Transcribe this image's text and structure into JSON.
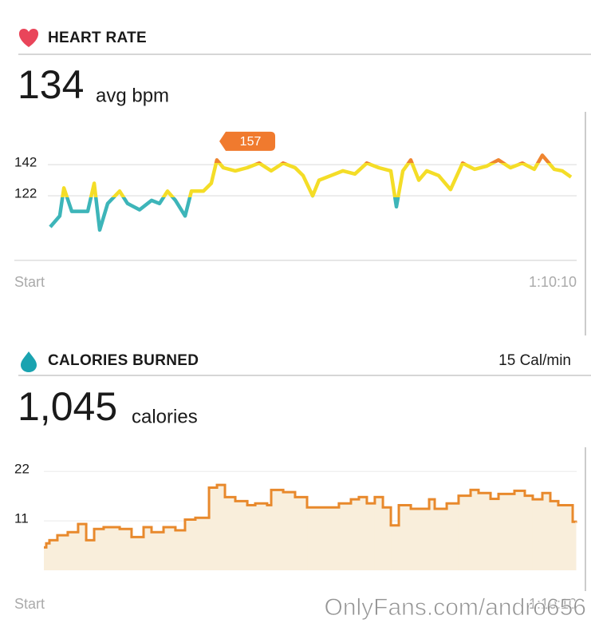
{
  "chart_data": [
    {
      "type": "line",
      "title": "HEART RATE",
      "summary": 134,
      "summary_unit": "avg bpm",
      "x": [
        0,
        77,
        110,
        174,
        303,
        355,
        400,
        464,
        561,
        625,
        722,
        819,
        883,
        948,
        1012,
        1090,
        1141,
        1238,
        1302,
        1347,
        1399,
        1496,
        1592,
        1689,
        1786,
        1882,
        1979,
        2044,
        2121,
        2173,
        2269,
        2366,
        2463,
        2559,
        2656,
        2753,
        2798,
        2850,
        2914,
        2979,
        3043,
        3140,
        3236,
        3333,
        3430,
        3526,
        3623,
        3720,
        3817,
        3913,
        3978,
        4074,
        4139,
        4210
      ],
      "values": [
        102,
        109,
        127,
        112,
        112,
        130,
        100,
        117,
        125,
        117,
        113,
        119,
        117,
        125,
        119,
        109,
        125,
        125,
        130,
        145,
        140,
        138,
        140,
        143,
        138,
        143,
        140,
        135,
        122,
        132,
        135,
        138,
        136,
        143,
        140,
        138,
        115,
        138,
        145,
        132,
        138,
        135,
        126,
        143,
        139,
        141,
        145,
        140,
        143,
        139,
        148,
        139,
        138,
        134
      ],
      "zones": [
        {
          "max": 121,
          "color": "#3db5b9"
        },
        {
          "max": 143,
          "color": "#f4dd27"
        },
        {
          "max": 160,
          "color": "#ef8530"
        }
      ],
      "annotation": {
        "x": 1367,
        "value": 157,
        "color": "#f07a2e"
      },
      "xlim": [
        0,
        4210
      ],
      "xticks": [
        {
          "value": 0,
          "label": "Start"
        },
        {
          "value": 4210,
          "label": "1:10:10"
        }
      ],
      "ylim": [
        80,
        160
      ],
      "yticks": [
        122,
        142
      ],
      "grid": true
    },
    {
      "type": "step",
      "title": "CALORIES BURNED",
      "rate": "15 Cal/min",
      "summary": {
        "value": 1045,
        "label": "1,045"
      },
      "summary_unit": "calories",
      "x": [
        0,
        19,
        44,
        107,
        189,
        271,
        335,
        398,
        473,
        600,
        694,
        789,
        852,
        947,
        1041,
        1117,
        1199,
        1307,
        1370,
        1433,
        1515,
        1610,
        1673,
        1767,
        1799,
        1894,
        1988,
        2083,
        2335,
        2430,
        2493,
        2556,
        2619,
        2683,
        2746,
        2809,
        2904,
        3049,
        3093,
        3188,
        3282,
        3377,
        3440,
        3535,
        3598,
        3724,
        3806,
        3869,
        3945,
        4008,
        4071,
        4185
      ],
      "values": [
        5.1,
        6,
        6.7,
        7.8,
        8.5,
        10.3,
        6.7,
        9.2,
        9.6,
        9.2,
        7.4,
        9.6,
        8.5,
        9.6,
        8.9,
        11.3,
        11.7,
        18.4,
        19,
        16.3,
        15.4,
        14.5,
        14.9,
        14.5,
        17.9,
        17.4,
        16.3,
        14,
        14.9,
        15.8,
        16.3,
        14.9,
        16.3,
        14,
        10,
        14.5,
        13.7,
        15.8,
        13.7,
        14.9,
        16.6,
        17.9,
        17.2,
        15.9,
        17,
        17.7,
        16.6,
        15.8,
        17.2,
        15.4,
        14.5,
        10.8
      ],
      "color": "#e8892c",
      "fill": "#f9eedb",
      "xlim": [
        0,
        4210
      ],
      "xticks": [
        {
          "value": 0,
          "label": "Start"
        },
        {
          "value": 4210,
          "label": "1:10:10"
        }
      ],
      "ylim": [
        0,
        24
      ],
      "yticks": [
        22,
        11
      ],
      "grid": true
    }
  ],
  "watermark": "OnlyFans.com/andro656"
}
